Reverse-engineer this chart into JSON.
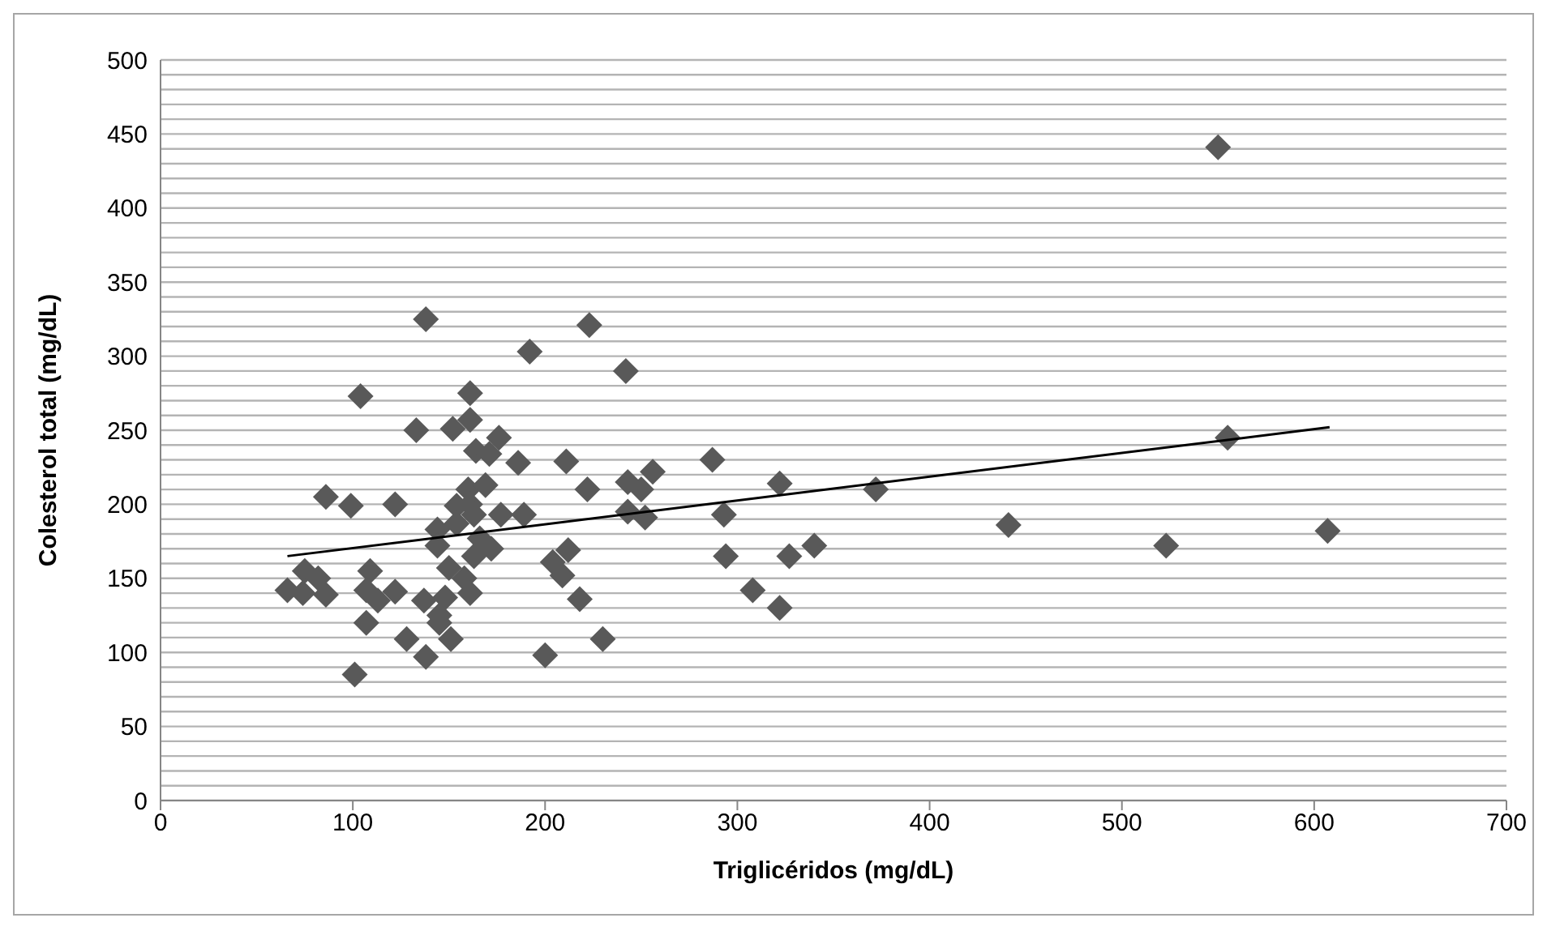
{
  "chart_data": {
    "type": "scatter",
    "xlabel": "Triglicéridos (mg/dL)",
    "ylabel": "Colesterol total (mg/dL)",
    "xlim": [
      0,
      700
    ],
    "xticks": [
      0,
      100,
      200,
      300,
      400,
      500,
      600,
      700
    ],
    "ylim": [
      0,
      500
    ],
    "yticks": [
      0,
      {
        "value": 10,
        "label": null
      },
      {
        "value": 20,
        "label": null
      },
      {
        "value": 30,
        "label": null
      },
      {
        "value": 40,
        "label": null
      },
      50,
      {
        "value": 60,
        "label": null
      },
      {
        "value": 70,
        "label": null
      },
      {
        "value": 80,
        "label": null
      },
      {
        "value": 90,
        "label": null
      },
      100,
      {
        "value": 110,
        "label": null
      },
      {
        "value": 120,
        "label": null
      },
      {
        "value": 130,
        "label": null
      },
      {
        "value": 140,
        "label": null
      },
      150,
      {
        "value": 160,
        "label": null
      },
      {
        "value": 170,
        "label": null
      },
      {
        "value": 180,
        "label": null
      },
      {
        "value": 190,
        "label": null
      },
      200,
      {
        "value": 210,
        "label": null
      },
      {
        "value": 220,
        "label": null
      },
      {
        "value": 230,
        "label": null
      },
      {
        "value": 240,
        "label": null
      },
      250,
      {
        "value": 260,
        "label": null
      },
      {
        "value": 270,
        "label": null
      },
      {
        "value": 280,
        "label": null
      },
      {
        "value": 290,
        "label": null
      },
      300,
      {
        "value": 310,
        "label": null
      },
      {
        "value": 320,
        "label": null
      },
      {
        "value": 330,
        "label": null
      },
      {
        "value": 340,
        "label": null
      },
      350,
      {
        "value": 360,
        "label": null
      },
      {
        "value": 370,
        "label": null
      },
      {
        "value": 380,
        "label": null
      },
      {
        "value": 390,
        "label": null
      },
      400,
      {
        "value": 410,
        "label": null
      },
      {
        "value": 420,
        "label": null
      },
      {
        "value": 430,
        "label": null
      },
      {
        "value": 440,
        "label": null
      },
      450,
      {
        "value": 460,
        "label": null
      },
      {
        "value": 470,
        "label": null
      },
      {
        "value": 480,
        "label": null
      },
      {
        "value": 490,
        "label": null
      },
      500
    ],
    "grid": "y",
    "legend": false,
    "series": [
      {
        "marker": "diamond",
        "color": "#595959",
        "x": [
          138,
          223,
          192,
          242,
          104,
          161,
          133,
          152,
          161,
          176,
          164,
          171,
          186,
          211,
          160,
          169,
          222,
          243,
          154,
          161,
          177,
          189,
          86,
          99,
          122,
          144,
          144,
          166,
          172,
          243,
          204,
          212,
          209,
          218,
          230,
          200,
          66,
          75,
          82,
          86,
          74,
          109,
          107,
          113,
          107,
          122,
          128,
          138,
          101,
          137,
          145,
          151,
          150,
          158,
          161,
          148,
          163,
          145,
          154,
          163,
          287,
          256,
          250,
          252,
          293,
          322,
          372,
          294,
          327,
          340,
          308,
          322,
          550,
          555,
          441,
          523,
          607
        ],
        "values": [
          325,
          321,
          303,
          290,
          273,
          275,
          250,
          251,
          257,
          245,
          236,
          234,
          228,
          229,
          210,
          213,
          210,
          215,
          199,
          200,
          193,
          193,
          205,
          199,
          200,
          183,
          172,
          177,
          170,
          195,
          161,
          169,
          152,
          136,
          109,
          98,
          142,
          155,
          150,
          139,
          140,
          155,
          142,
          135,
          120,
          141,
          109,
          97,
          85,
          135,
          125,
          109,
          157,
          150,
          140,
          137,
          165,
          120,
          187,
          193,
          230,
          222,
          210,
          191,
          193,
          214,
          210,
          165,
          165,
          172,
          142,
          130,
          441,
          245,
          186,
          172,
          182
        ]
      },
      {
        "type": "line",
        "color": "#000000",
        "x": [
          66,
          608
        ],
        "values": [
          165,
          252
        ]
      }
    ]
  }
}
